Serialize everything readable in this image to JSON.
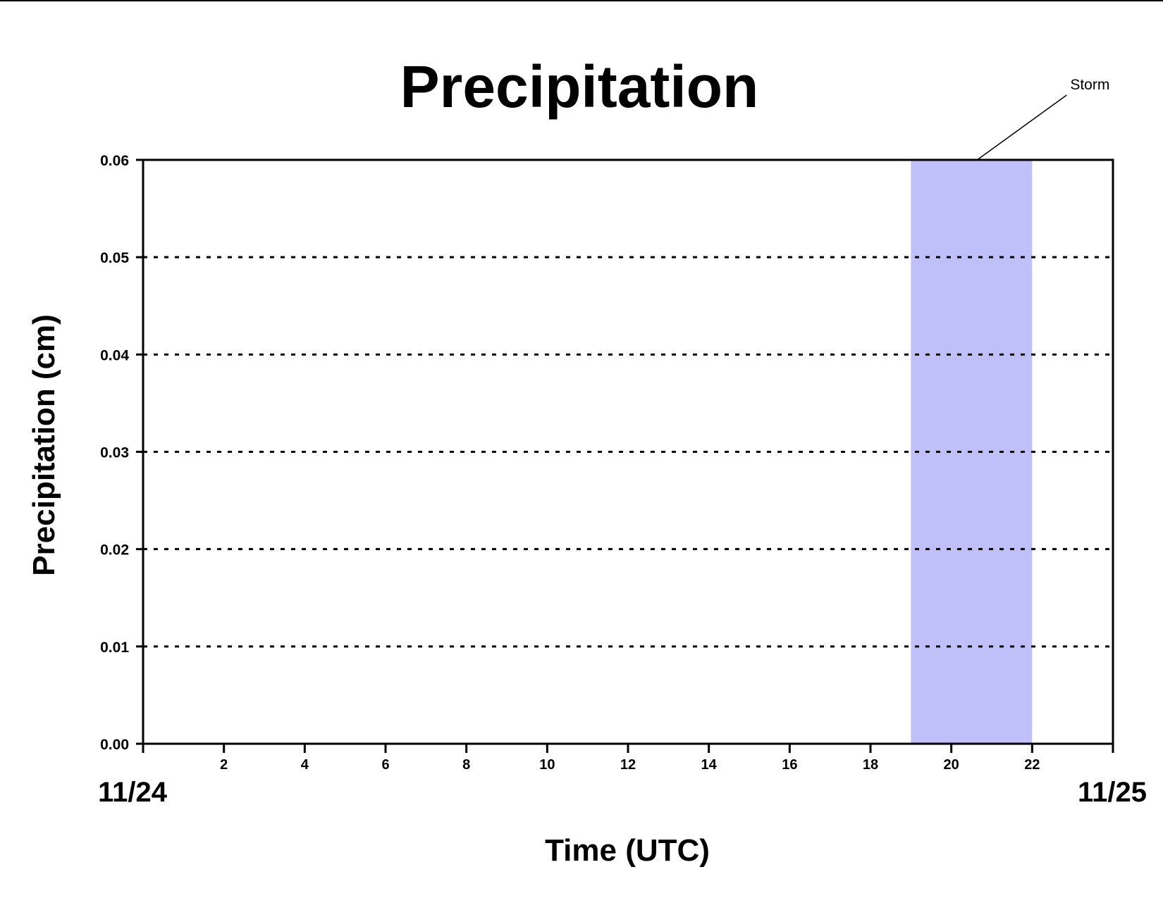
{
  "chart_data": {
    "type": "line",
    "title": "Precipitation",
    "xlabel": "Time (UTC)",
    "ylabel": "Precipitation (cm)",
    "xlim": [
      0,
      24
    ],
    "ylim": [
      0,
      0.06
    ],
    "x_ticks": [
      0,
      2,
      4,
      6,
      8,
      10,
      12,
      14,
      16,
      18,
      20,
      22,
      24
    ],
    "x_tick_labels": [
      "",
      "2",
      "4",
      "6",
      "8",
      "10",
      "12",
      "14",
      "16",
      "18",
      "20",
      "22",
      ""
    ],
    "y_ticks": [
      0.0,
      0.01,
      0.02,
      0.03,
      0.04,
      0.05,
      0.06
    ],
    "y_tick_labels": [
      "0.00",
      "0.01",
      "0.02",
      "0.03",
      "0.04",
      "0.05",
      "0.06"
    ],
    "date_labels": {
      "start": "11/24",
      "end": "11/25"
    },
    "grid": "dashed horizontal",
    "series": [
      {
        "x": [
          0,
          24
        ],
        "values": [
          0,
          0
        ],
        "color": "#8b0000"
      }
    ],
    "shaded_region": {
      "x_start": 19,
      "x_end": 22,
      "color": "#bfbffa"
    },
    "annotation": {
      "text": "Storm",
      "x": 20.5,
      "y": 0.06
    }
  }
}
